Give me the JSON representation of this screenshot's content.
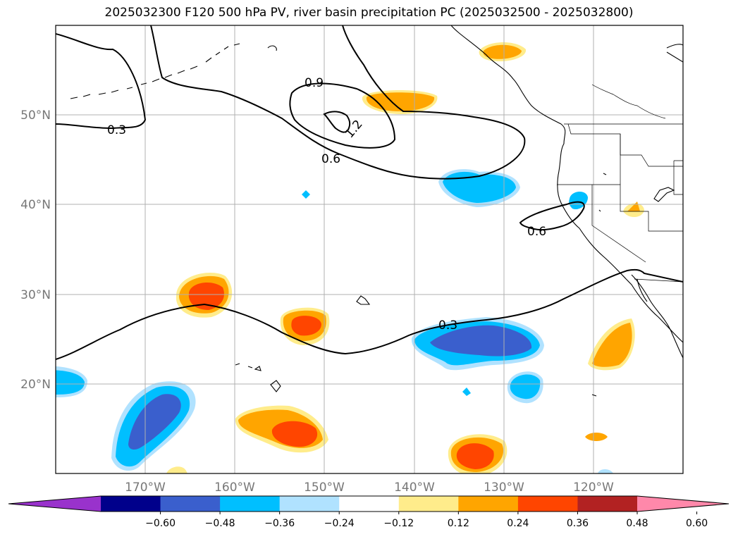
{
  "title": "2025032300 F120 500 hPa PV, river basin precipitation PC (2025032500 - 2025032800)",
  "map": {
    "lat_labels": [
      "50°N",
      "40°N",
      "30°N",
      "20°N"
    ],
    "lon_labels": [
      "170°W",
      "160°W",
      "150°W",
      "140°W",
      "130°W",
      "120°W"
    ],
    "contour_labels": [
      "0.3",
      "0.9",
      "1.2",
      "0.6",
      "0.6",
      "0.3"
    ],
    "colors": {
      "neg_strong": "#3a5fcd",
      "neg_mid": "#00bfff",
      "neg_weak": "#b0e2ff",
      "pos_weak": "#ffec8b",
      "pos_mid": "#ffa500",
      "pos_strong": "#ff4500"
    }
  },
  "colorbar": {
    "ticks": [
      "−0.60",
      "−0.48",
      "−0.36",
      "−0.24",
      "−0.12",
      "0.12",
      "0.24",
      "0.36",
      "0.48",
      "0.60"
    ],
    "colors": [
      "#9932cc",
      "#00008b",
      "#3a5fcd",
      "#00bfff",
      "#b0e2ff",
      "#ffffff",
      "#ffec8b",
      "#ffa500",
      "#ff4500",
      "#b22222",
      "#ff88aa"
    ]
  }
}
